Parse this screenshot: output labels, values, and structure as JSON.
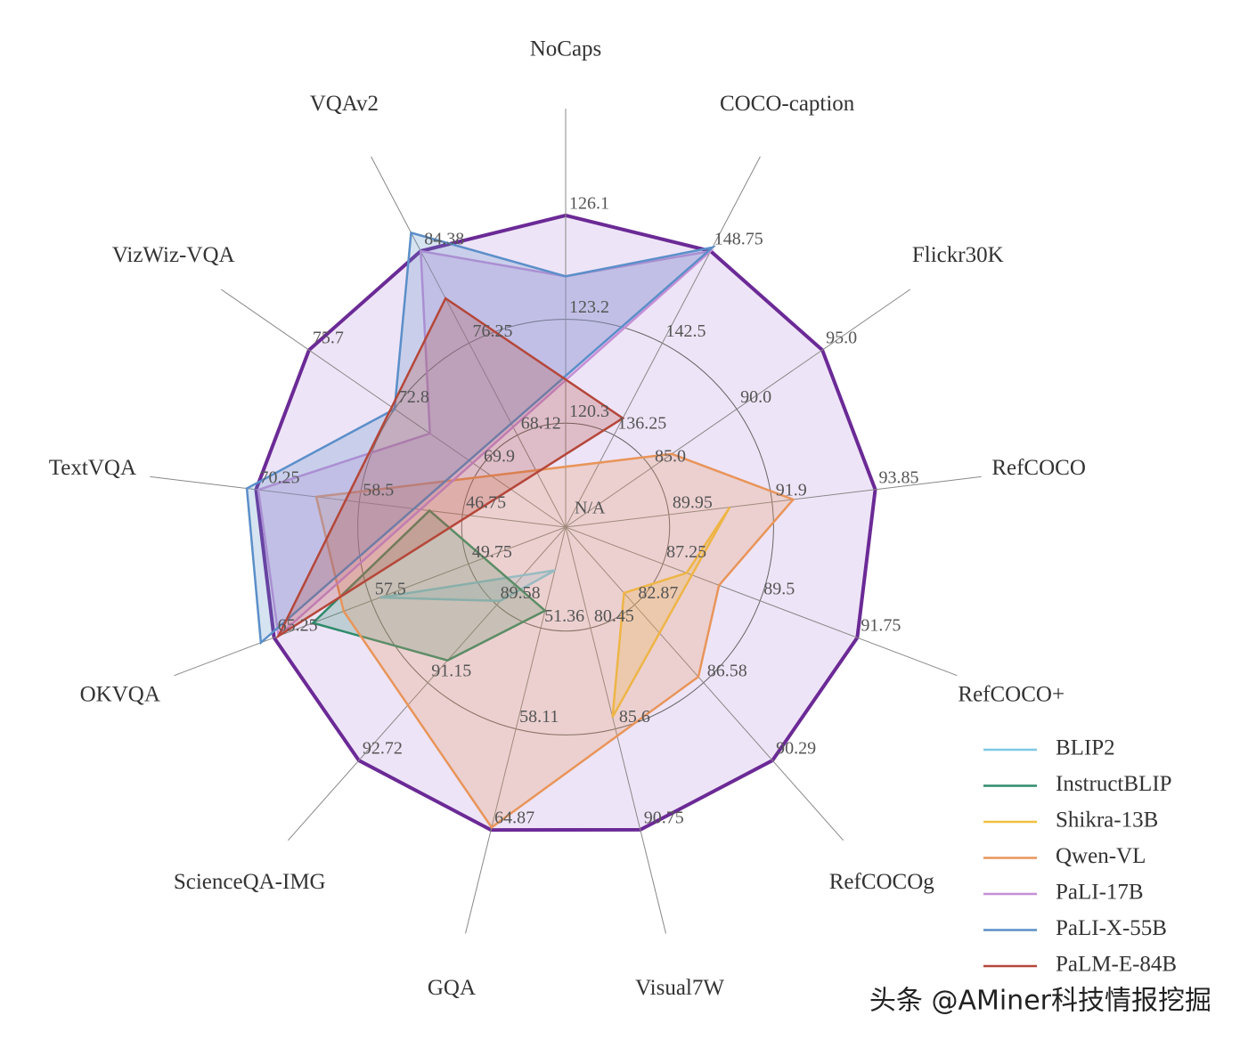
{
  "chart_data": {
    "type": "radar",
    "center_label": "N/A",
    "axes": [
      {
        "label": "NoCaps",
        "ticks": [
          120.3,
          123.2,
          126.1
        ]
      },
      {
        "label": "COCO-caption",
        "ticks": [
          136.25,
          142.5,
          148.75
        ]
      },
      {
        "label": "Flickr30K",
        "ticks": [
          {
            "value": 85,
            "label": "85.0"
          },
          {
            "value": 90,
            "label": "90.0"
          },
          {
            "value": 95,
            "label": "95.0"
          }
        ]
      },
      {
        "label": "RefCOCO",
        "ticks": [
          89.95,
          91.9,
          93.85
        ]
      },
      {
        "label": "RefCOCO+",
        "ticks": [
          87.25,
          89.5,
          91.75
        ]
      },
      {
        "label": "RefCOCOg",
        "ticks": [
          82.87,
          86.58,
          90.29
        ]
      },
      {
        "label": "Visual7W",
        "ticks": [
          80.45,
          85.6,
          90.75
        ]
      },
      {
        "label": "GQA",
        "ticks": [
          51.36,
          58.11,
          64.87
        ]
      },
      {
        "label": "ScienceQA-IMG",
        "ticks": [
          89.58,
          91.15,
          92.72
        ]
      },
      {
        "label": "OKVQA",
        "ticks": [
          49.75,
          57.5,
          65.25
        ]
      },
      {
        "label": "TextVQA",
        "ticks": [
          46.75,
          58.5,
          70.25
        ]
      },
      {
        "label": "VizWiz-VQA",
        "ticks": [
          69.9,
          72.8,
          75.7
        ]
      },
      {
        "label": "VQAv2",
        "ticks": [
          68.12,
          76.25,
          84.38
        ]
      }
    ],
    "series": [
      {
        "name": "BLIP2",
        "color": "#7ec8e3",
        "values": [
          null,
          null,
          null,
          null,
          null,
          null,
          null,
          47.5,
          89.5,
          56.8,
          null,
          null,
          null
        ]
      },
      {
        "name": "InstructBLIP",
        "color": "#2e8b6a",
        "values": [
          null,
          null,
          null,
          null,
          null,
          null,
          null,
          50.2,
          90.7,
          62.15,
          50.5,
          null,
          null
        ]
      },
      {
        "name": "Shikra-13B",
        "color": "#f0c040",
        "values": [
          null,
          null,
          null,
          91.1,
          87.8,
          82.3,
          85.0,
          null,
          null,
          null,
          null,
          null,
          null
        ]
      },
      {
        "name": "Qwen-VL",
        "color": "#e8955a",
        "values": [
          null,
          null,
          86.2,
          92.3,
          88.55,
          86.3,
          null,
          64.7,
          null,
          59.7,
          63.4,
          null,
          null
        ]
      },
      {
        "name": "PaLI-17B",
        "color": "#c58fd6",
        "values": [
          124.4,
          148.75,
          null,
          null,
          null,
          null,
          null,
          null,
          null,
          64.9,
          70.0,
          71.6,
          84.38
        ]
      },
      {
        "name": "PaLI-X-55B",
        "color": "#5b8fc9",
        "values": [
          124.4,
          149.0,
          null,
          null,
          null,
          null,
          null,
          null,
          null,
          66.3,
          71.3,
          72.8,
          86.0
        ]
      },
      {
        "name": "PaLM-E-84B",
        "color": "#b5473a",
        "values": [
          null,
          137.4,
          null,
          null,
          null,
          null,
          null,
          null,
          null,
          64.9,
          null,
          null,
          80.2
        ]
      }
    ],
    "watermark": "头条 @AMiner科技情报挖掘"
  }
}
